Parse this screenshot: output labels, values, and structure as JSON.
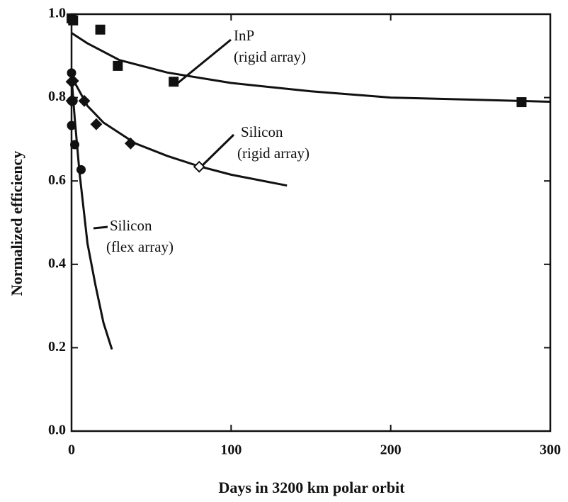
{
  "chart_data": {
    "type": "scatter",
    "xlabel": "Days in 3200 km polar orbit",
    "ylabel": "Normalized efficiency",
    "xlim": [
      0,
      300
    ],
    "ylim": [
      0,
      1.0
    ],
    "xticks": [
      0,
      100,
      200,
      300
    ],
    "yticks": [
      {
        "value": 0,
        "label": "0.0"
      },
      0.2,
      0.4,
      0.6,
      0.8,
      {
        "value": 1.0,
        "label": "1.0"
      }
    ],
    "color": "#111111",
    "series": [
      {
        "marker": "square",
        "x": [
          0,
          1,
          18,
          29,
          64,
          282
        ],
        "values": [
          0.99,
          0.985,
          0.963,
          0.876,
          0.838,
          0.789
        ],
        "filled": [
          true,
          true,
          true,
          true,
          true,
          true
        ]
      },
      {
        "marker": "diamond",
        "x": [
          0,
          1,
          0,
          8,
          15.5,
          37,
          80
        ],
        "values": [
          0.838,
          0.84,
          0.792,
          0.792,
          0.736,
          0.69,
          0.634
        ],
        "filled": [
          true,
          true,
          true,
          true,
          true,
          true,
          false
        ]
      },
      {
        "marker": "circle",
        "x": [
          0,
          0,
          1,
          0,
          2,
          6
        ],
        "values": [
          0.859,
          0.792,
          0.792,
          0.733,
          0.687,
          0.627
        ],
        "filled": [
          true,
          true,
          true,
          true,
          true,
          true
        ]
      }
    ],
    "curves": [
      {
        "x": [
          0,
          10,
          30,
          60,
          100,
          150,
          200,
          250,
          300
        ],
        "values": [
          0.955,
          0.93,
          0.89,
          0.86,
          0.835,
          0.815,
          0.8,
          0.795,
          0.79
        ]
      },
      {
        "x": [
          0,
          10,
          20,
          40,
          60,
          80,
          100,
          135
        ],
        "values": [
          0.85,
          0.78,
          0.74,
          0.69,
          0.66,
          0.635,
          0.615,
          0.589
        ]
      },
      {
        "x": [
          0,
          2,
          5,
          10,
          15,
          20,
          25.3
        ],
        "values": [
          0.85,
          0.75,
          0.62,
          0.45,
          0.35,
          0.26,
          0.196
        ]
      }
    ],
    "annotations": [
      [
        "InP",
        "(rigid array)"
      ],
      [
        "Silicon",
        "(rigid array)"
      ],
      [
        "Silicon",
        "(flex array)"
      ]
    ]
  }
}
